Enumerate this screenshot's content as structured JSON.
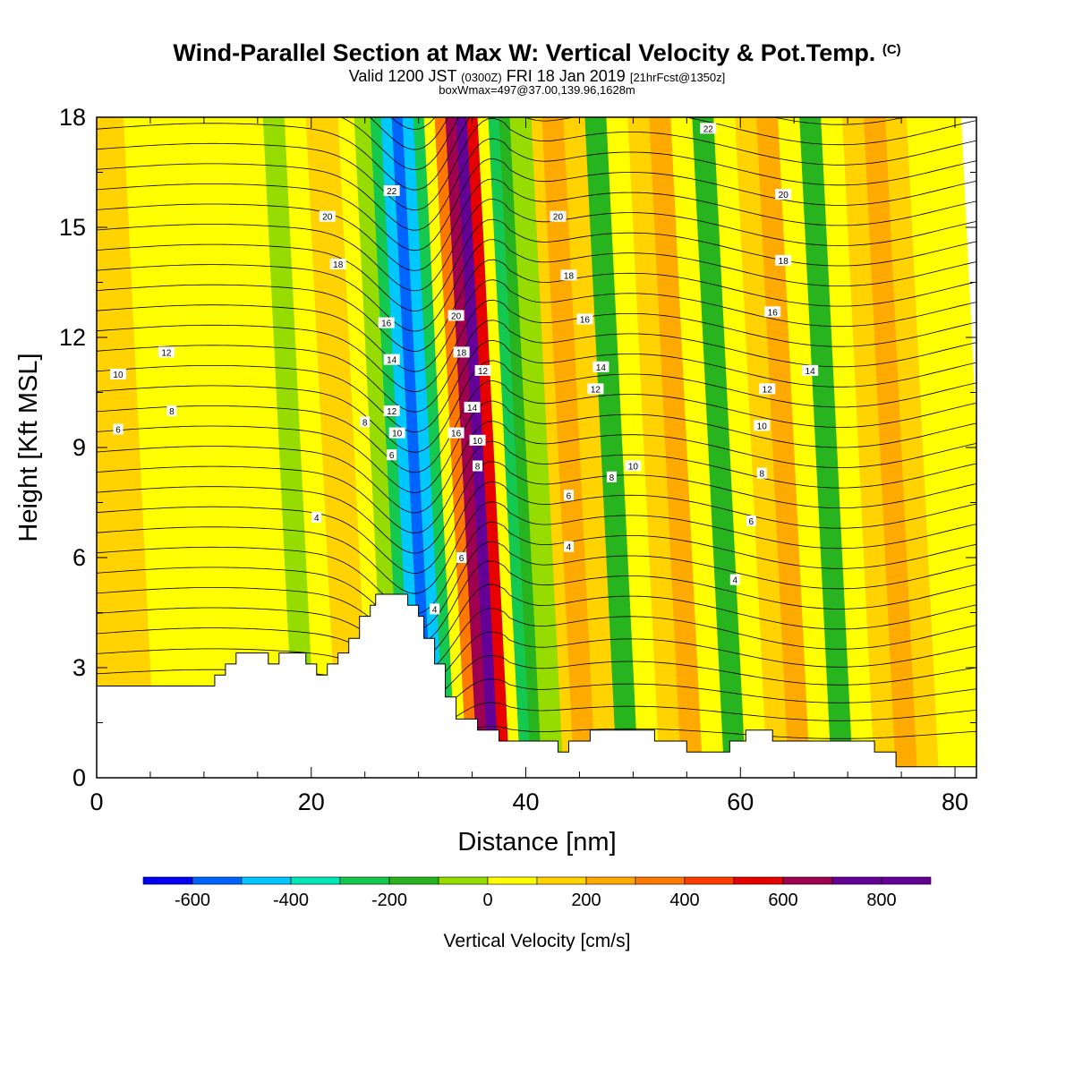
{
  "header": {
    "title": "Wind-Parallel Section at Max W: Vertical Velocity & Pot.Temp.",
    "title_units": "(C)",
    "valid_prefix": "Valid 1200 JST",
    "valid_zulu": "(0300Z)",
    "valid_date": "FRI 18 Jan 2019",
    "forecast": "[21hrFcst@1350z]",
    "box_info": "boxWmax=497@37.00,139.96,1628m"
  },
  "chart_data": {
    "type": "heatmap",
    "xlabel": "Distance [nm]",
    "ylabel": "Height [Kft MSL]",
    "xlim": [
      0,
      82
    ],
    "ylim": [
      0,
      18
    ],
    "x_ticks": [
      0,
      20,
      40,
      60,
      80
    ],
    "y_ticks": [
      0,
      3,
      6,
      9,
      12,
      15,
      18
    ],
    "colorbar": {
      "label": "Vertical Velocity [cm/s]",
      "levels": [
        -700,
        -600,
        -500,
        -400,
        -300,
        -200,
        -100,
        0,
        100,
        200,
        300,
        400,
        500,
        600,
        700,
        800,
        900
      ],
      "colors": [
        "#0000f0",
        "#0064ff",
        "#00c8ff",
        "#00e6b4",
        "#14c850",
        "#28b41e",
        "#96dc00",
        "#ffff00",
        "#ffd200",
        "#ffaa00",
        "#ff7800",
        "#ff3c00",
        "#e60000",
        "#a00050",
        "#640096",
        "#640096"
      ],
      "tick_values": [
        -600,
        -400,
        -200,
        0,
        200,
        400,
        600,
        800
      ],
      "tick_labels": [
        "-600",
        "-400",
        "-200",
        "0",
        "200",
        "400",
        "600",
        "800"
      ]
    },
    "velocity_bands": [
      {
        "x": 0,
        "w": 100
      },
      {
        "x": 4,
        "w": 50
      },
      {
        "x": 8,
        "w": 0
      },
      {
        "x": 12,
        "w": 50
      },
      {
        "x": 15,
        "w": 0
      },
      {
        "x": 17,
        "w": -100
      },
      {
        "x": 19,
        "w": 0
      },
      {
        "x": 21,
        "w": 100
      },
      {
        "x": 22.5,
        "w": 150
      },
      {
        "x": 24,
        "w": 50
      },
      {
        "x": 25.5,
        "w": -50
      },
      {
        "x": 27,
        "w": -250
      },
      {
        "x": 28,
        "w": -450
      },
      {
        "x": 29,
        "w": -600
      },
      {
        "x": 30,
        "w": -450
      },
      {
        "x": 31,
        "w": -250
      },
      {
        "x": 32,
        "w": 50
      },
      {
        "x": 33,
        "w": 350
      },
      {
        "x": 34,
        "w": 650
      },
      {
        "x": 35,
        "w": 750
      },
      {
        "x": 36,
        "w": 500
      },
      {
        "x": 37,
        "w": 0
      },
      {
        "x": 38,
        "w": -250
      },
      {
        "x": 39,
        "w": -150
      },
      {
        "x": 40,
        "w": -50
      },
      {
        "x": 42,
        "w": 150
      },
      {
        "x": 43,
        "w": 250
      },
      {
        "x": 45,
        "w": 100
      },
      {
        "x": 47,
        "w": -150
      },
      {
        "x": 49,
        "w": 0
      },
      {
        "x": 51,
        "w": 100
      },
      {
        "x": 53,
        "w": 200
      },
      {
        "x": 55,
        "w": 50
      },
      {
        "x": 57,
        "w": -150
      },
      {
        "x": 59,
        "w": 0
      },
      {
        "x": 61,
        "w": 100
      },
      {
        "x": 63,
        "w": 200
      },
      {
        "x": 65,
        "w": 50
      },
      {
        "x": 67,
        "w": -200
      },
      {
        "x": 69,
        "w": 50
      },
      {
        "x": 71,
        "w": 150
      },
      {
        "x": 73,
        "w": 250
      },
      {
        "x": 75,
        "w": 150
      },
      {
        "x": 77,
        "w": 50
      },
      {
        "x": 79,
        "w": 0
      },
      {
        "x": 82,
        "w": 0
      }
    ],
    "theta_contour_labels": [
      {
        "x": 2,
        "y": 11,
        "label": "10"
      },
      {
        "x": 6.5,
        "y": 11.6,
        "label": "12"
      },
      {
        "x": 7,
        "y": 10,
        "label": "8"
      },
      {
        "x": 2,
        "y": 9.5,
        "label": "6"
      },
      {
        "x": 20.5,
        "y": 7.1,
        "label": "4"
      },
      {
        "x": 21.5,
        "y": 15.3,
        "label": "20"
      },
      {
        "x": 22.5,
        "y": 14,
        "label": "18"
      },
      {
        "x": 25,
        "y": 9.7,
        "label": "8"
      },
      {
        "x": 27,
        "y": 12.4,
        "label": "16"
      },
      {
        "x": 27.5,
        "y": 11.4,
        "label": "14"
      },
      {
        "x": 27.5,
        "y": 10,
        "label": "12"
      },
      {
        "x": 28,
        "y": 9.4,
        "label": "10"
      },
      {
        "x": 27.5,
        "y": 8.8,
        "label": "6"
      },
      {
        "x": 27.5,
        "y": 16,
        "label": "22"
      },
      {
        "x": 31.5,
        "y": 4.6,
        "label": "4"
      },
      {
        "x": 33.5,
        "y": 12.6,
        "label": "20"
      },
      {
        "x": 34,
        "y": 11.6,
        "label": "18"
      },
      {
        "x": 36,
        "y": 11.1,
        "label": "12"
      },
      {
        "x": 35,
        "y": 10.1,
        "label": "14"
      },
      {
        "x": 33.5,
        "y": 9.4,
        "label": "16"
      },
      {
        "x": 35.5,
        "y": 9.2,
        "label": "10"
      },
      {
        "x": 35.5,
        "y": 8.5,
        "label": "8"
      },
      {
        "x": 34,
        "y": 6,
        "label": "6"
      },
      {
        "x": 43,
        "y": 15.3,
        "label": "20"
      },
      {
        "x": 44,
        "y": 13.7,
        "label": "18"
      },
      {
        "x": 45.5,
        "y": 12.5,
        "label": "16"
      },
      {
        "x": 47,
        "y": 11.2,
        "label": "14"
      },
      {
        "x": 46.5,
        "y": 10.6,
        "label": "12"
      },
      {
        "x": 48,
        "y": 8.2,
        "label": "8"
      },
      {
        "x": 50,
        "y": 8.5,
        "label": "10"
      },
      {
        "x": 44,
        "y": 7.7,
        "label": "6"
      },
      {
        "x": 44,
        "y": 6.3,
        "label": "4"
      },
      {
        "x": 57,
        "y": 17.7,
        "label": "22"
      },
      {
        "x": 64,
        "y": 15.9,
        "label": "20"
      },
      {
        "x": 64,
        "y": 14.1,
        "label": "18"
      },
      {
        "x": 63,
        "y": 12.7,
        "label": "16"
      },
      {
        "x": 66.5,
        "y": 11.1,
        "label": "14"
      },
      {
        "x": 62.5,
        "y": 10.6,
        "label": "12"
      },
      {
        "x": 62,
        "y": 9.6,
        "label": "10"
      },
      {
        "x": 62,
        "y": 8.3,
        "label": "8"
      },
      {
        "x": 61,
        "y": 7,
        "label": "6"
      },
      {
        "x": 59.5,
        "y": 5.4,
        "label": "4"
      }
    ],
    "terrain_height": [
      {
        "x": 0,
        "h": 2.5
      },
      {
        "x": 11,
        "h": 2.5
      },
      {
        "x": 11,
        "h": 2.8
      },
      {
        "x": 12,
        "h": 2.8
      },
      {
        "x": 12,
        "h": 3.1
      },
      {
        "x": 13,
        "h": 3.1
      },
      {
        "x": 13,
        "h": 3.4
      },
      {
        "x": 16,
        "h": 3.4
      },
      {
        "x": 16,
        "h": 3.1
      },
      {
        "x": 17,
        "h": 3.1
      },
      {
        "x": 17,
        "h": 3.4
      },
      {
        "x": 19.5,
        "h": 3.4
      },
      {
        "x": 19.5,
        "h": 3.1
      },
      {
        "x": 20.5,
        "h": 3.1
      },
      {
        "x": 20.5,
        "h": 2.8
      },
      {
        "x": 21.5,
        "h": 2.8
      },
      {
        "x": 21.5,
        "h": 3.1
      },
      {
        "x": 22.5,
        "h": 3.1
      },
      {
        "x": 22.5,
        "h": 3.4
      },
      {
        "x": 23.5,
        "h": 3.4
      },
      {
        "x": 23.5,
        "h": 3.8
      },
      {
        "x": 24.5,
        "h": 3.8
      },
      {
        "x": 24.5,
        "h": 4.4
      },
      {
        "x": 25.5,
        "h": 4.4
      },
      {
        "x": 25.5,
        "h": 4.7
      },
      {
        "x": 26,
        "h": 4.7
      },
      {
        "x": 26,
        "h": 5.0
      },
      {
        "x": 29,
        "h": 5.0
      },
      {
        "x": 29,
        "h": 4.7
      },
      {
        "x": 30,
        "h": 4.7
      },
      {
        "x": 30,
        "h": 4.4
      },
      {
        "x": 30.5,
        "h": 4.4
      },
      {
        "x": 30.5,
        "h": 3.8
      },
      {
        "x": 31.5,
        "h": 3.8
      },
      {
        "x": 31.5,
        "h": 3.1
      },
      {
        "x": 32.5,
        "h": 3.1
      },
      {
        "x": 32.5,
        "h": 2.2
      },
      {
        "x": 33.5,
        "h": 2.2
      },
      {
        "x": 33.5,
        "h": 1.6
      },
      {
        "x": 35.5,
        "h": 1.6
      },
      {
        "x": 35.5,
        "h": 1.3
      },
      {
        "x": 37.5,
        "h": 1.3
      },
      {
        "x": 37.5,
        "h": 1.0
      },
      {
        "x": 43,
        "h": 1.0
      },
      {
        "x": 43,
        "h": 0.7
      },
      {
        "x": 44,
        "h": 0.7
      },
      {
        "x": 44,
        "h": 1.0
      },
      {
        "x": 46,
        "h": 1.0
      },
      {
        "x": 46,
        "h": 1.3
      },
      {
        "x": 52,
        "h": 1.3
      },
      {
        "x": 52,
        "h": 1.0
      },
      {
        "x": 55,
        "h": 1.0
      },
      {
        "x": 55,
        "h": 0.7
      },
      {
        "x": 59,
        "h": 0.7
      },
      {
        "x": 59,
        "h": 1.0
      },
      {
        "x": 60.5,
        "h": 1.0
      },
      {
        "x": 60.5,
        "h": 1.3
      },
      {
        "x": 63,
        "h": 1.3
      },
      {
        "x": 63,
        "h": 1.0
      },
      {
        "x": 72.5,
        "h": 1.0
      },
      {
        "x": 72.5,
        "h": 0.7
      },
      {
        "x": 74.5,
        "h": 0.7
      },
      {
        "x": 74.5,
        "h": 0.3
      },
      {
        "x": 82,
        "h": 0.3
      }
    ]
  }
}
